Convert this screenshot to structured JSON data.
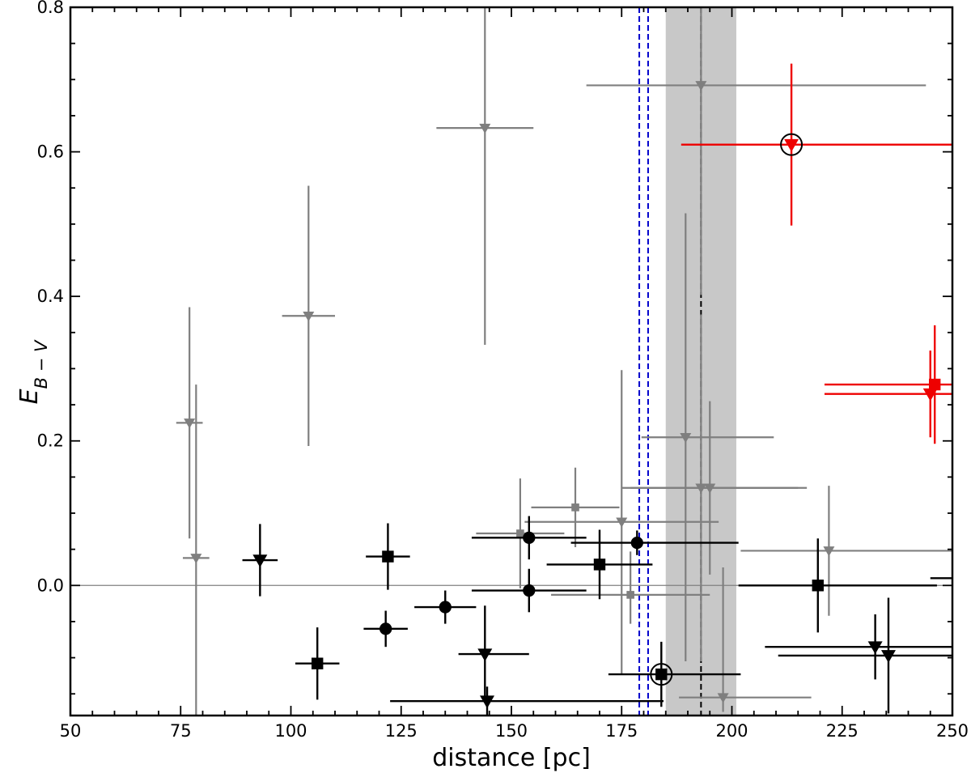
{
  "chart_data": {
    "type": "scatter",
    "title": "",
    "xlabel": "distance [pc]",
    "ylabel_main": "E",
    "ylabel_sub": "B − V",
    "xlim": [
      50,
      250
    ],
    "ylim": [
      -0.18,
      0.8
    ],
    "x_ticks": [
      50,
      75,
      100,
      125,
      150,
      175,
      200,
      225,
      250
    ],
    "x_tick_labels": [
      "50",
      "75",
      "100",
      "125",
      "150",
      "175",
      "200",
      "225",
      "250"
    ],
    "y_ticks": [
      0.0,
      0.2,
      0.4,
      0.6,
      0.8
    ],
    "y_tick_labels": [
      "0.0",
      "0.2",
      "0.4",
      "0.6",
      "0.8"
    ],
    "x_minor_step": 5,
    "y_minor_step": 0.05,
    "grid": false,
    "zero_line": {
      "y": 0.0,
      "color": "#808080"
    },
    "shaded_band": {
      "x": [
        185,
        201
      ],
      "color": "#c8c8c8"
    },
    "vlines": [
      {
        "x": 179,
        "color": "#0000cc",
        "style": "dashed"
      },
      {
        "x": 181,
        "color": "#0000cc",
        "style": "dashed"
      },
      {
        "x": 193,
        "color": "#000000",
        "style": "dashed"
      }
    ],
    "colors": {
      "black": "#000000",
      "gray": "#7f7f7f",
      "red": "#ee0000"
    },
    "series": [
      {
        "color_key": "gray",
        "points": [
          {
            "x": 77,
            "y": 0.225,
            "xerr": [
              3,
              3
            ],
            "yerr": [
              0.16,
              0.16
            ],
            "marker": "triangle-down",
            "size": 7
          },
          {
            "x": 78.5,
            "y": 0.038,
            "xerr": [
              3,
              3
            ],
            "yerr": [
              0.24,
              0.24
            ],
            "marker": "triangle-down",
            "size": 7
          },
          {
            "x": 104,
            "y": 0.373,
            "xerr": [
              6,
              6
            ],
            "yerr": [
              0.18,
              0.18
            ],
            "marker": "triangle-down",
            "size": 7
          },
          {
            "x": 144,
            "y": 0.633,
            "xerr": [
              11,
              11
            ],
            "yerr": [
              0.3,
              0.3
            ],
            "marker": "triangle-down",
            "size": 7
          },
          {
            "x": 193,
            "y": 0.692,
            "xerr": [
              26,
              51
            ],
            "yerr": [
              0.29,
              0.29
            ],
            "marker": "triangle-down",
            "size": 7
          },
          {
            "x": 152,
            "y": 0.072,
            "xerr": [
              10,
              10
            ],
            "yerr": [
              0.076,
              0.076
            ],
            "marker": "square",
            "size": 6
          },
          {
            "x": 164.5,
            "y": 0.108,
            "xerr": [
              10,
              10
            ],
            "yerr": [
              0.055,
              0.055
            ],
            "marker": "square",
            "size": 6
          },
          {
            "x": 177,
            "y": -0.013,
            "xerr": [
              18,
              18
            ],
            "yerr": [
              0.04,
              0.06
            ],
            "marker": "square",
            "size": 6
          },
          {
            "x": 175,
            "y": 0.088,
            "xerr": [
              22,
              22
            ],
            "yerr": [
              0.21,
              0.21
            ],
            "marker": "triangle-down",
            "size": 7
          },
          {
            "x": 189.5,
            "y": 0.205,
            "xerr": [
              10,
              20
            ],
            "yerr": [
              0.31,
              0.31
            ],
            "marker": "triangle-down",
            "size": 7
          },
          {
            "x": 193,
            "y": 0.135,
            "xerr": [
              16,
              24
            ],
            "yerr": [
              0.24,
              0.24
            ],
            "marker": "triangle-down",
            "size": 7
          },
          {
            "x": 195,
            "y": 0.135,
            "xerr": [
              20,
              20
            ],
            "yerr": [
              0.12,
              0.12
            ],
            "marker": "triangle-down",
            "size": 7
          },
          {
            "x": 198,
            "y": -0.155,
            "xerr": [
              10,
              20
            ],
            "yerr": [
              0.02,
              0.18
            ],
            "marker": "triangle-down",
            "size": 7
          },
          {
            "x": 222,
            "y": 0.048,
            "xerr": [
              20,
              30
            ],
            "yerr": [
              0.09,
              0.09
            ],
            "marker": "triangle-down",
            "size": 7
          }
        ]
      },
      {
        "color_key": "black",
        "points": [
          {
            "x": 93,
            "y": 0.035,
            "xerr": [
              4,
              4
            ],
            "yerr": [
              0.05,
              0.05
            ],
            "marker": "triangle-down",
            "size": 9
          },
          {
            "x": 106,
            "y": -0.108,
            "xerr": [
              5,
              5
            ],
            "yerr": [
              0.05,
              0.05
            ],
            "marker": "square",
            "size": 9
          },
          {
            "x": 121.5,
            "y": -0.06,
            "xerr": [
              5,
              5
            ],
            "yerr": [
              0.025,
              0.025
            ],
            "marker": "circle",
            "size": 9
          },
          {
            "x": 122,
            "y": 0.04,
            "xerr": [
              5,
              5
            ],
            "yerr": [
              0.046,
              0.046
            ],
            "marker": "square",
            "size": 9
          },
          {
            "x": 135,
            "y": -0.03,
            "xerr": [
              7,
              7
            ],
            "yerr": [
              0.023,
              0.023
            ],
            "marker": "circle",
            "size": 9
          },
          {
            "x": 144,
            "y": -0.095,
            "xerr": [
              6,
              10
            ],
            "yerr": [
              0.067,
              0.067
            ],
            "marker": "triangle-down",
            "size": 9
          },
          {
            "x": 144.5,
            "y": -0.16,
            "xerr": [
              22,
              40
            ],
            "yerr": [
              0.02,
              0.02
            ],
            "marker": "triangle-down",
            "size": 9
          },
          {
            "x": 154,
            "y": 0.066,
            "xerr": [
              13,
              13
            ],
            "yerr": [
              0.03,
              0.03
            ],
            "marker": "circle",
            "size": 9
          },
          {
            "x": 154,
            "y": -0.007,
            "xerr": [
              13,
              13
            ],
            "yerr": [
              0.03,
              0.03
            ],
            "marker": "circle",
            "size": 9
          },
          {
            "x": 170,
            "y": 0.029,
            "xerr": [
              12,
              12
            ],
            "yerr": [
              0.048,
              0.048
            ],
            "marker": "square",
            "size": 9
          },
          {
            "x": 178.5,
            "y": 0.059,
            "xerr": [
              15,
              23
            ],
            "yerr": [
              0.017,
              0.017
            ],
            "marker": "circle",
            "size": 9
          },
          {
            "x": 184,
            "y": -0.123,
            "xerr": [
              12,
              18
            ],
            "yerr": [
              0.045,
              0.045
            ],
            "marker": "square",
            "size": 9,
            "circled": true
          },
          {
            "x": 219.5,
            "y": 0.0,
            "xerr": [
              18,
              27
            ],
            "yerr": [
              0.065,
              0.065
            ],
            "marker": "square",
            "size": 9
          },
          {
            "x": 232.5,
            "y": -0.085,
            "xerr": [
              25,
              25
            ],
            "yerr": [
              0.045,
              0.045
            ],
            "marker": "triangle-down",
            "size": 9
          },
          {
            "x": 235.5,
            "y": -0.097,
            "xerr": [
              25,
              25
            ],
            "yerr": [
              0.08,
              0.08
            ],
            "marker": "triangle-down",
            "size": 9
          },
          {
            "x": 250,
            "y": 0.01,
            "xerr": [
              5,
              5
            ],
            "yerr": [
              0,
              0
            ],
            "marker": "none",
            "size": 0
          }
        ]
      },
      {
        "color_key": "red",
        "points": [
          {
            "x": 213.5,
            "y": 0.61,
            "xerr": [
              25,
              40
            ],
            "yerr": [
              0.112,
              0.112
            ],
            "marker": "triangle-down",
            "size": 9,
            "circled": true
          },
          {
            "x": 245,
            "y": 0.265,
            "xerr": [
              24,
              10
            ],
            "yerr": [
              0.06,
              0.06
            ],
            "marker": "triangle-down",
            "size": 9
          },
          {
            "x": 246,
            "y": 0.278,
            "xerr": [
              25,
              10
            ],
            "yerr": [
              0.082,
              0.082
            ],
            "marker": "square",
            "size": 9
          }
        ]
      }
    ]
  }
}
